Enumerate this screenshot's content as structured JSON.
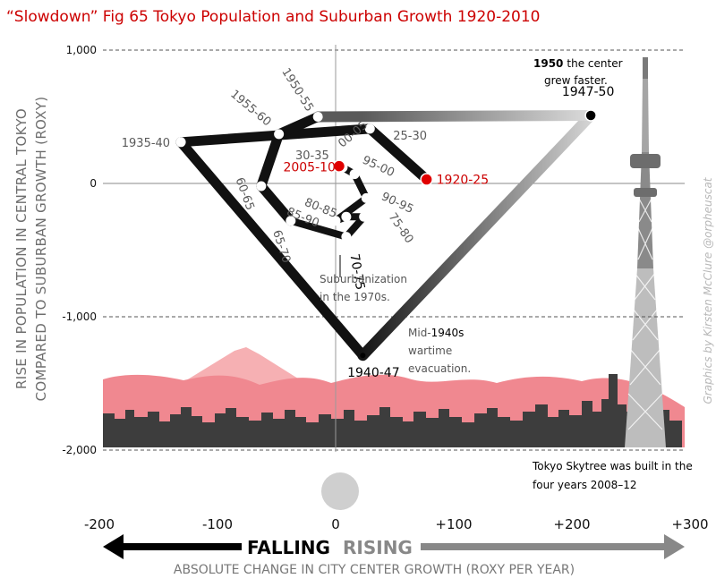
{
  "title": "“Slowdown” Fig 65 Tokyo Population and Suburban Growth 1920-2010",
  "credit": "Graphics by Kirsten McClure @orpheuscat",
  "colors": {
    "title": "#cc0000",
    "path": "#111111",
    "highlight": "#e00000",
    "mountain": "#f6b0b3",
    "hills": "#f08890",
    "skyline": "#3d3d3d",
    "grid": "#888888"
  },
  "axis_words": {
    "falling": "FALLING",
    "rising": "RISING"
  },
  "annotations": {
    "center_1950_bold": "1950",
    "center_1950_rest": "the center",
    "center_1950_line2": "grew faster.",
    "suburb_line1": "Suburbanization",
    "suburb_line2": "in the 1970s.",
    "wartime_line1_a": "Mid-",
    "wartime_line1_b": "1940s",
    "wartime_line2": "wartime",
    "wartime_line3": "evacuation.",
    "skytree_line1": "Tokyo Skytree was built in the",
    "skytree_line2": "four years 2008–12"
  },
  "chart_data": {
    "type": "line",
    "title": "“Slowdown” Fig 65 Tokyo Population and Suburban Growth 1920-2010",
    "xlabel": "ABSOLUTE CHANGE IN CITY CENTER GROWTH (ROXY PER YEAR)",
    "ylabel_line1": "RISE IN POPULATION IN CENTRAL TOKYO",
    "ylabel_line2": "COMPARED TO SUBURBAN GROWTH (ROXY)",
    "xlim": [
      -200,
      300
    ],
    "ylim": [
      -2000,
      1000
    ],
    "x_ticks": [
      "-200",
      "-100",
      "0",
      "+100",
      "+200",
      "+300"
    ],
    "x_tick_values": [
      -200,
      -100,
      0,
      100,
      200,
      300
    ],
    "y_ticks": [
      "1,000",
      "0",
      "-1,000",
      "-2,000"
    ],
    "y_tick_values": [
      1000,
      0,
      -1000,
      -2000
    ],
    "grid": true,
    "points": [
      {
        "label": "1920-25",
        "x": 77,
        "y": 30
      },
      {
        "label": "25-30",
        "x": 29,
        "y": 410
      },
      {
        "label": "1935-40",
        "x": -131,
        "y": 310
      },
      {
        "label": "1940-47",
        "x": 23,
        "y": -1290
      },
      {
        "label": "1947-50",
        "x": 216,
        "y": 510
      },
      {
        "label": "1950-55",
        "x": -15,
        "y": 500
      },
      {
        "label": "1955-60",
        "x": -48,
        "y": 370
      },
      {
        "label": "60-65",
        "x": -63,
        "y": -20
      },
      {
        "label": "65-70",
        "x": -38,
        "y": -280
      },
      {
        "label": "70-75",
        "x": 9,
        "y": -400
      },
      {
        "label": "75-80",
        "x": 24,
        "y": -250
      },
      {
        "label": "80-85",
        "x": 9,
        "y": -250
      },
      {
        "label": "85-90",
        "x": 0,
        "y": -280
      },
      {
        "label": "90-95",
        "x": 26,
        "y": -110
      },
      {
        "label": "95-00",
        "x": 16,
        "y": 70
      },
      {
        "label": "00-05",
        "x": 6,
        "y": 120
      },
      {
        "label": "2005-10",
        "x": 3,
        "y": 130
      }
    ]
  }
}
